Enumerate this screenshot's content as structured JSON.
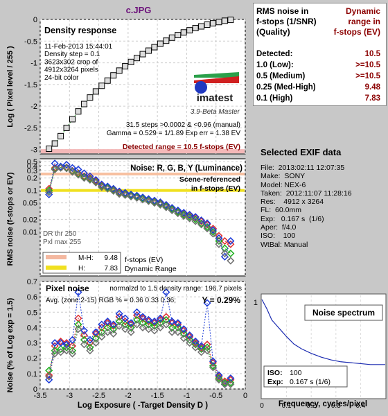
{
  "title": "c.JPG",
  "chart_data": [
    {
      "type": "line",
      "title": "Density response",
      "ylabel": "Log ( Pixel level / 255 )",
      "xlim": [
        -3.5,
        0
      ],
      "ylim": [
        -3.1,
        0
      ],
      "yticks": [
        "0",
        "-0.5",
        "-1",
        "-1.5",
        "-2",
        "-2.5",
        "-3"
      ],
      "info_lines": [
        "11-Feb-2013 15:44:01",
        "Density step = 0.1",
        "3623x302 crop of",
        "4912x3264 pixels",
        "24-bit color"
      ],
      "footer_lines": [
        "31.5 steps >0.0002 & <0.96 (manual)",
        "Gamma = 0.529 = 1/1.89  Exp err = 1.38 EV"
      ],
      "detected_range": "Detected range = 10.5 f-stops (EV)",
      "logo_text": "imatest",
      "version": "3.9-Beta  Master",
      "series": [
        {
          "x": [
            -3.35,
            -3.25,
            -3.15,
            -3.05,
            -2.95,
            -2.85,
            -2.75,
            -2.65,
            -2.55,
            -2.45,
            -2.35,
            -2.25,
            -2.15,
            -2.05,
            -1.95,
            -1.85,
            -1.75,
            -1.65,
            -1.55,
            -1.45,
            -1.35,
            -1.25,
            -1.15,
            -1.05,
            -0.95,
            -0.85,
            -0.75,
            -0.65,
            -0.55,
            -0.45,
            -0.35,
            -0.25
          ],
          "y": [
            -2.98,
            -2.86,
            -2.69,
            -2.5,
            -2.3,
            -2.12,
            -1.95,
            -1.8,
            -1.66,
            -1.53,
            -1.41,
            -1.29,
            -1.18,
            -1.08,
            -0.98,
            -0.89,
            -0.8,
            -0.72,
            -0.64,
            -0.56,
            -0.49,
            -0.42,
            -0.36,
            -0.3,
            -0.25,
            -0.2,
            -0.16,
            -0.12,
            -0.09,
            -0.06,
            -0.03,
            -0.01
          ]
        }
      ]
    },
    {
      "type": "line",
      "title": "Noise: R, G, B, Y (Luminance)",
      "ylabel": "RMS noise (f-stops or EV)",
      "yscale": "log",
      "ylim": [
        0.001,
        0.5
      ],
      "xlim": [
        -3.5,
        0
      ],
      "yticks": [
        "0.5",
        "0.4",
        "0.3",
        "0.2",
        "0.1",
        "0.05",
        "0.02",
        "0.01"
      ],
      "annotation": "Scene-referenced in f-stops (EV)",
      "dr_lines": [
        "DR thr 250",
        "Pxl max 255"
      ],
      "legend": {
        "mh_label": "M-H:",
        "mh_value": "9.48",
        "h_label": "H:",
        "h_value": "7.83",
        "note": "f-stops (EV) Dynamic Range"
      },
      "x": [
        -3.35,
        -3.25,
        -3.15,
        -3.05,
        -2.95,
        -2.85,
        -2.75,
        -2.65,
        -2.55,
        -2.45,
        -2.35,
        -2.25,
        -2.15,
        -2.05,
        -1.95,
        -1.85,
        -1.75,
        -1.65,
        -1.55,
        -1.45,
        -1.35,
        -1.25,
        -1.15,
        -1.05,
        -0.95,
        -0.85,
        -0.75,
        -0.65,
        -0.55,
        -0.45,
        -0.35,
        -0.25
      ],
      "series": [
        {
          "name": "R",
          "color": "#e03030",
          "values": [
            0.11,
            0.35,
            0.37,
            0.36,
            0.3,
            0.26,
            0.22,
            0.2,
            0.17,
            0.13,
            0.12,
            0.105,
            0.09,
            0.083,
            0.077,
            0.072,
            0.066,
            0.06,
            0.055,
            0.05,
            0.043,
            0.037,
            0.032,
            0.028,
            0.025,
            0.022,
            0.018,
            0.015,
            0.012,
            0.008,
            0.006,
            0.005
          ]
        },
        {
          "name": "G",
          "color": "#20b020",
          "values": [
            0.1,
            0.33,
            0.36,
            0.35,
            0.29,
            0.25,
            0.21,
            0.19,
            0.16,
            0.125,
            0.115,
            0.1,
            0.085,
            0.08,
            0.074,
            0.069,
            0.063,
            0.057,
            0.052,
            0.047,
            0.041,
            0.035,
            0.03,
            0.026,
            0.023,
            0.02,
            0.016,
            0.013,
            0.01,
            0.006,
            0.004,
            0.003
          ]
        },
        {
          "name": "B",
          "color": "#1a3ad8",
          "values": [
            0.08,
            0.45,
            0.38,
            0.42,
            0.35,
            0.32,
            0.26,
            0.22,
            0.18,
            0.14,
            0.125,
            0.11,
            0.095,
            0.088,
            0.08,
            0.075,
            0.068,
            0.062,
            0.057,
            0.052,
            0.045,
            0.038,
            0.033,
            0.029,
            0.026,
            0.023,
            0.019,
            0.016,
            0.011,
            0.007,
            0.0025,
            0.006
          ]
        },
        {
          "name": "Y",
          "color": "#707070",
          "values": [
            0.09,
            0.32,
            0.35,
            0.34,
            0.28,
            0.24,
            0.2,
            0.18,
            0.155,
            0.12,
            0.11,
            0.097,
            0.082,
            0.077,
            0.071,
            0.066,
            0.06,
            0.055,
            0.05,
            0.045,
            0.039,
            0.033,
            0.028,
            0.024,
            0.021,
            0.018,
            0.015,
            0.012,
            0.009,
            0.005,
            0.003,
            0.002
          ]
        }
      ]
    },
    {
      "type": "line",
      "title": "Pixel noise",
      "subtitle": "normalzd to 1.5 density range: 196.7 pixels",
      "avg_line": "Avg. (zone 2-15) RGB % = 0.36  0.33  0.36;",
      "y_pct": "Y = 0.29%",
      "ylabel": "Noise (% of Log exp = 1.5)",
      "xlabel": "Log Exposure ( -Target Density D )",
      "xlim": [
        -3.5,
        0
      ],
      "ylim": [
        0,
        0.7
      ],
      "yticks": [
        "0.7",
        "0.6",
        "0.5",
        "0.4",
        "0.3",
        "0.2",
        "0.1",
        "0"
      ],
      "xticks": [
        "-3.5",
        "-3",
        "-2.5",
        "-2",
        "-1.5",
        "-1",
        "-0.5",
        "0"
      ],
      "x": [
        -3.35,
        -3.25,
        -3.15,
        -3.05,
        -2.95,
        -2.85,
        -2.75,
        -2.65,
        -2.55,
        -2.45,
        -2.35,
        -2.25,
        -2.15,
        -2.05,
        -1.95,
        -1.85,
        -1.75,
        -1.65,
        -1.55,
        -1.45,
        -1.35,
        -1.25,
        -1.15,
        -1.05,
        -0.95,
        -0.85,
        -0.75,
        -0.65,
        -0.55,
        -0.45,
        -0.35,
        -0.25
      ],
      "series": [
        {
          "name": "R",
          "color": "#e03030",
          "values": [
            0.09,
            0.28,
            0.31,
            0.3,
            0.28,
            0.46,
            0.35,
            0.3,
            0.36,
            0.4,
            0.43,
            0.41,
            0.47,
            0.44,
            0.42,
            0.48,
            0.46,
            0.44,
            0.43,
            0.45,
            0.47,
            0.43,
            0.42,
            0.38,
            0.34,
            0.3,
            0.27,
            0.29,
            0.17,
            0.08,
            0.05,
            0.06
          ]
        },
        {
          "name": "G",
          "color": "#20b020",
          "values": [
            0.12,
            0.25,
            0.26,
            0.27,
            0.25,
            0.42,
            0.32,
            0.27,
            0.33,
            0.37,
            0.4,
            0.39,
            0.44,
            0.42,
            0.4,
            0.45,
            0.43,
            0.42,
            0.41,
            0.43,
            0.45,
            0.4,
            0.4,
            0.36,
            0.32,
            0.29,
            0.26,
            0.27,
            0.15,
            0.07,
            0.04,
            0.04
          ]
        },
        {
          "name": "B",
          "color": "#1a3ad8",
          "values": [
            0.06,
            0.3,
            0.3,
            0.29,
            0.32,
            0.63,
            0.38,
            0.32,
            0.37,
            0.42,
            0.44,
            0.42,
            0.49,
            0.46,
            0.43,
            0.5,
            0.47,
            0.45,
            0.44,
            0.46,
            0.63,
            0.44,
            0.43,
            0.39,
            0.35,
            0.31,
            0.28,
            0.56,
            0.18,
            0.09,
            0.03,
            0.07
          ]
        },
        {
          "name": "Y",
          "color": "#707070",
          "values": [
            0.08,
            0.23,
            0.24,
            0.25,
            0.23,
            0.39,
            0.29,
            0.25,
            0.3,
            0.34,
            0.37,
            0.36,
            0.41,
            0.39,
            0.37,
            0.42,
            0.4,
            0.39,
            0.38,
            0.4,
            0.42,
            0.37,
            0.37,
            0.33,
            0.3,
            0.27,
            0.24,
            0.25,
            0.14,
            0.06,
            0.03,
            0.03
          ]
        }
      ]
    },
    {
      "type": "line",
      "title": "Noise spectrum",
      "xlabel": "Frequency, cycles/pixel",
      "xlim": [
        0,
        0.5
      ],
      "ylim": [
        0,
        1
      ],
      "xticks": [
        "0",
        "0.1",
        "0.2",
        "0.3",
        "0.4"
      ],
      "ytick_top": "1",
      "iso_label": "ISO:",
      "iso_value": "100",
      "exp_label": "Exp:",
      "exp_value": "0.167 s  (1/6)",
      "series": [
        {
          "x": [
            0,
            0.02,
            0.04,
            0.06,
            0.08,
            0.1,
            0.13,
            0.16,
            0.2,
            0.24,
            0.28,
            0.32,
            0.36,
            0.4,
            0.44,
            0.48,
            0.5
          ],
          "y": [
            1,
            0.9,
            0.78,
            0.72,
            0.66,
            0.6,
            0.52,
            0.47,
            0.42,
            0.38,
            0.35,
            0.33,
            0.32,
            0.31,
            0.3,
            0.3,
            0.3
          ]
        }
      ]
    }
  ],
  "rms_table": {
    "head_left": "RMS noise in\nf-stops (1/SNR)\n(Quality)",
    "head_right": "Dynamic\nrange in\nf-stops (EV)",
    "rows": [
      {
        "label": "Detected:",
        "value": "10.5"
      },
      {
        "label": "1.0  (Low):",
        "value": ">=10.5"
      },
      {
        "label": "0.5  (Medium)",
        "value": ">=10.5"
      },
      {
        "label": "0.25 (Med-High)",
        "value": "9.48"
      },
      {
        "label": "0.1  (High)",
        "value": "7.83"
      }
    ]
  },
  "exif": {
    "title": "Selected EXIF data",
    "lines": [
      "File:  2013:02:11 12:07:35",
      "Make:  SONY",
      "Model: NEX-6",
      "Taken:  2012:11:07 11:28:16",
      "Res:    4912 x 3264",
      "FL:  60.0mm",
      "Exp:   0.167 s  (1/6)",
      "Aper:  f/4.0",
      "ISO:    100",
      "WtBal: Manual"
    ]
  }
}
